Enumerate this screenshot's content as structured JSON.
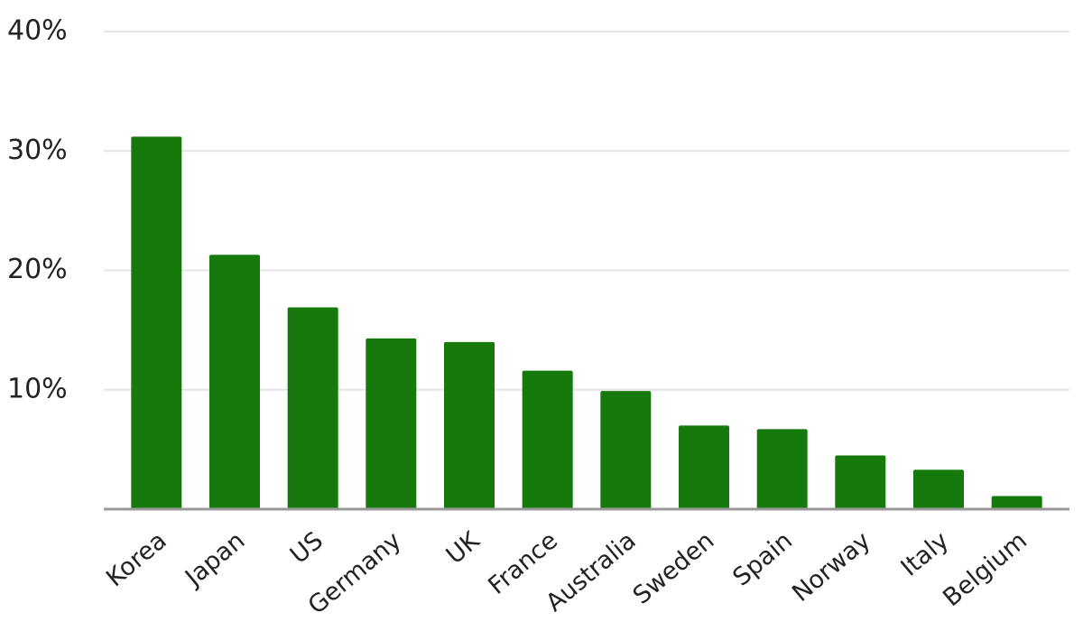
{
  "chart_data": {
    "type": "bar",
    "categories": [
      "Korea",
      "Japan",
      "US",
      "Germany",
      "UK",
      "France",
      "Australia",
      "Sweden",
      "Spain",
      "Norway",
      "Italy",
      "Belgium"
    ],
    "values": [
      31.2,
      21.3,
      16.9,
      14.3,
      14.0,
      11.6,
      9.9,
      7.0,
      6.7,
      4.5,
      3.3,
      1.1
    ],
    "color": "#157a0b",
    "ylim": [
      0,
      40
    ],
    "yticks": [
      {
        "value": 10,
        "label": "10%"
      },
      {
        "value": 20,
        "label": "20%"
      },
      {
        "value": 30,
        "label": "30%"
      },
      {
        "value": 40,
        "label": "40%"
      }
    ],
    "grid": true
  }
}
